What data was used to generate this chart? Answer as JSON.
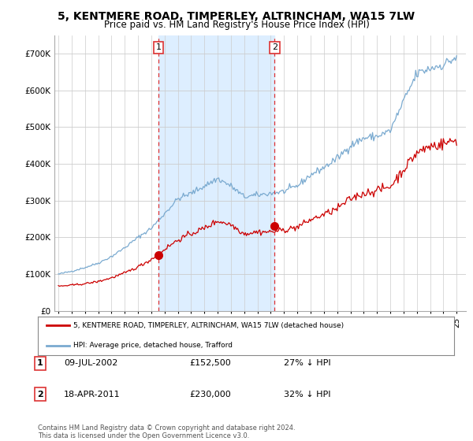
{
  "title": "5, KENTMERE ROAD, TIMPERLEY, ALTRINCHAM, WA15 7LW",
  "subtitle": "Price paid vs. HM Land Registry's House Price Index (HPI)",
  "ylim": [
    0,
    750000
  ],
  "yticks": [
    0,
    100000,
    200000,
    300000,
    400000,
    500000,
    600000,
    700000
  ],
  "ytick_labels": [
    "£0",
    "£100K",
    "£200K",
    "£300K",
    "£400K",
    "£500K",
    "£600K",
    "£700K"
  ],
  "background_color": "#ffffff",
  "plot_bg_color": "#ffffff",
  "grid_color": "#cccccc",
  "shade_color": "#ddeeff",
  "red_line_color": "#cc0000",
  "blue_line_color": "#7aaad0",
  "sale1_x": 2002.54,
  "sale1_y": 152500,
  "sale1_label": "1",
  "sale2_x": 2011.29,
  "sale2_y": 230000,
  "sale2_label": "2",
  "vline_color": "#dd3333",
  "legend_label_red": "5, KENTMERE ROAD, TIMPERLEY, ALTRINCHAM, WA15 7LW (detached house)",
  "legend_label_blue": "HPI: Average price, detached house, Trafford",
  "table_row1": [
    "1",
    "09-JUL-2002",
    "£152,500",
    "27% ↓ HPI"
  ],
  "table_row2": [
    "2",
    "18-APR-2011",
    "£230,000",
    "32% ↓ HPI"
  ],
  "footnote": "Contains HM Land Registry data © Crown copyright and database right 2024.\nThis data is licensed under the Open Government Licence v3.0.",
  "title_fontsize": 10,
  "subtitle_fontsize": 8.5,
  "tick_fontsize": 7.5,
  "xlim_left": 1994.7,
  "xlim_right": 2025.7
}
